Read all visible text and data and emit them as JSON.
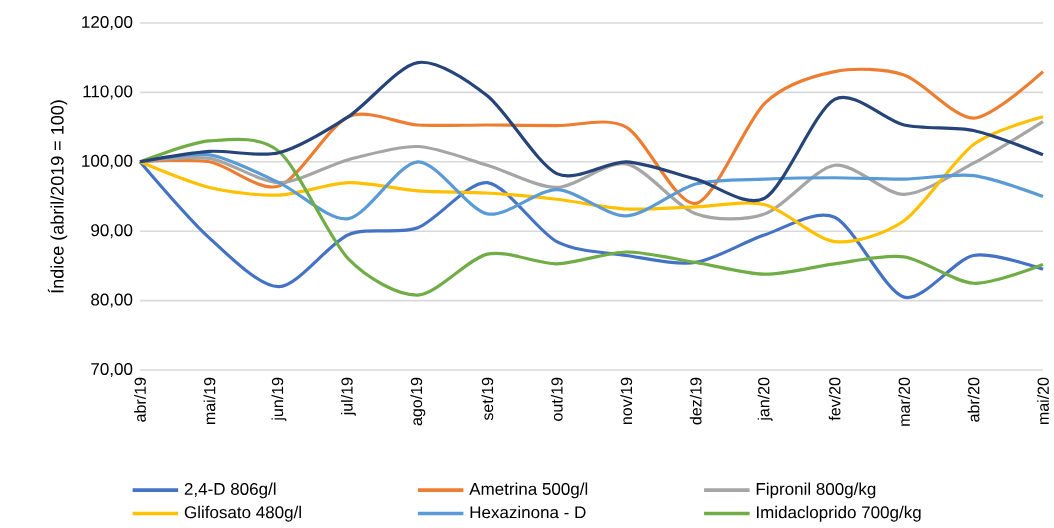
{
  "chart_data": {
    "type": "line",
    "ylabel": "Índice (abril/2019 = 100)",
    "categories": [
      "abr/19",
      "mai/19",
      "jun/19",
      "jul/19",
      "ago/19",
      "set/19",
      "out/19",
      "nov/19",
      "dez/19",
      "jan/20",
      "fev/20",
      "mar/20",
      "abr/20",
      "mai/20"
    ],
    "series": [
      {
        "name": "2,4-D 806g/l",
        "color": "#4472c4",
        "values": [
          100,
          89,
          82,
          89.5,
          90.5,
          97,
          88.5,
          86.5,
          85.5,
          89.5,
          92,
          80.5,
          86.5,
          84.5
        ]
      },
      {
        "name": "Ametrina 500g/l",
        "color": "#ed7d31",
        "values": [
          100,
          100,
          96.5,
          106.5,
          105.3,
          105.3,
          105.2,
          105,
          94,
          108.5,
          113,
          112.5,
          106.3,
          113
        ]
      },
      {
        "name": "Fipronil 800g/kg",
        "color": "#a5a5a5",
        "values": [
          100,
          100.5,
          97,
          100.3,
          102.2,
          99.5,
          96.3,
          99.7,
          92.5,
          92.5,
          99.5,
          95.3,
          99.8,
          105.8
        ]
      },
      {
        "name": "Glifosato 480g/l",
        "color": "#ffc000",
        "values": [
          100,
          96.3,
          95.2,
          97,
          95.8,
          95.5,
          94.6,
          93.2,
          93.5,
          93.8,
          88.5,
          91.5,
          102.5,
          106.5
        ]
      },
      {
        "name": "Hexazinona - D",
        "color": "#5b9bd5",
        "values": [
          100,
          101,
          97,
          91.8,
          100,
          92.5,
          96,
          92.2,
          96.8,
          97.5,
          97.7,
          97.5,
          98,
          95
        ]
      },
      {
        "name": "Imidacloprido 700g/kg",
        "color": "#70ad47",
        "values": [
          100,
          103,
          101.5,
          86,
          80.8,
          86.7,
          85.3,
          87,
          85.5,
          83.8,
          85.3,
          86.3,
          82.5,
          85.2
        ]
      },
      {
        "color": "#264478",
        "values": [
          100,
          101.5,
          101.3,
          106.5,
          114.3,
          109.5,
          98.3,
          100,
          97.5,
          94.8,
          109,
          105.3,
          104.5,
          101
        ]
      }
    ],
    "ylim": [
      70,
      120
    ],
    "yticks": [
      {
        "value": 70,
        "label": "70,00"
      },
      {
        "value": 80,
        "label": "80,00"
      },
      {
        "value": 90,
        "label": "90,00"
      },
      {
        "value": 100,
        "label": "100,00"
      },
      {
        "value": 110,
        "label": "110,00"
      },
      {
        "value": 120,
        "label": "120,00"
      }
    ],
    "grid": "y",
    "legend": "bottom",
    "marker": "none",
    "line_style": "solid"
  }
}
